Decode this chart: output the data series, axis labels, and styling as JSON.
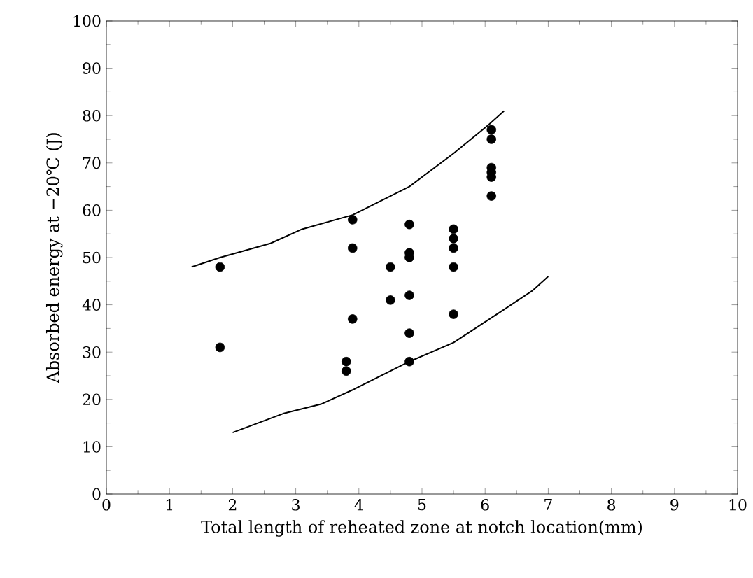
{
  "chart_data": {
    "type": "scatter",
    "xlabel": "Total length of reheated zone at notch location(mm)",
    "ylabel": "Absorbed energy at −20℃ (J)",
    "xlim": [
      0,
      10
    ],
    "ylim": [
      0,
      100
    ],
    "xticks": [
      0,
      1,
      2,
      3,
      4,
      5,
      6,
      7,
      8,
      9,
      10
    ],
    "yticks": [
      0,
      10,
      20,
      30,
      40,
      50,
      60,
      70,
      80,
      90,
      100
    ],
    "series": [
      {
        "color": "#000000",
        "marker": "circle",
        "x": [
          1.8,
          1.8,
          3.9,
          3.9,
          3.9,
          3.8,
          3.8,
          4.5,
          4.5,
          4.8,
          4.8,
          4.8,
          4.8,
          4.8,
          4.8,
          5.5,
          5.5,
          5.5,
          5.5,
          5.5,
          6.1,
          6.1,
          6.1,
          6.1,
          6.1,
          6.1
        ],
        "values": [
          48,
          31,
          58,
          52,
          37,
          28,
          26,
          48,
          41,
          57,
          51,
          50,
          42,
          34,
          28,
          56,
          54,
          52,
          48,
          38,
          77,
          75,
          69,
          68,
          67,
          63
        ]
      },
      {
        "type": "line",
        "color": "#000000",
        "marker": "none",
        "line_style": "solid",
        "x": [
          1.35,
          1.8,
          2.6,
          3.1,
          3.9,
          4.8,
          5.5,
          6.05,
          6.3
        ],
        "values": [
          48,
          50,
          53,
          56,
          59,
          65,
          72,
          78,
          81
        ]
      },
      {
        "type": "line",
        "color": "#000000",
        "marker": "none",
        "line_style": "solid",
        "x": [
          2.0,
          2.8,
          3.4,
          3.9,
          4.8,
          5.5,
          6.3,
          6.75,
          7.0
        ],
        "values": [
          13,
          17,
          19,
          22,
          28,
          32,
          39,
          43,
          46
        ]
      }
    ]
  }
}
